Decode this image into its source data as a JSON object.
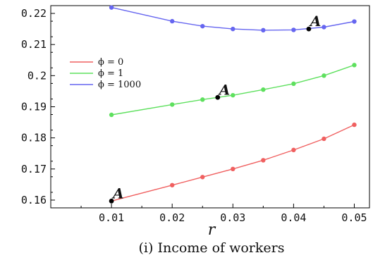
{
  "chart_data": {
    "type": "line",
    "xlabel": "r",
    "caption": "(i) Income of workers",
    "xlim": [
      0.0,
      0.0525
    ],
    "ylim": [
      0.1575,
      0.2225
    ],
    "xticks": [
      0.01,
      0.02,
      0.03,
      0.04,
      0.05
    ],
    "xtick_labels": [
      "0.01",
      "0.02",
      "0.03",
      "0.04",
      "0.05"
    ],
    "yticks": [
      0.16,
      0.17,
      0.18,
      0.19,
      0.2,
      0.21,
      0.22
    ],
    "ytick_labels": [
      "0.16",
      "0.17",
      "0.18",
      "0.19",
      "0.2",
      "0.21",
      "0.22"
    ],
    "grid": false,
    "legend": {
      "placement": "upper-left",
      "entries": [
        "ϕ = 0",
        "ϕ = 1",
        "ϕ = 1000"
      ]
    },
    "series": [
      {
        "name": "ϕ = 0",
        "color": "#f06060",
        "x": [
          0.01,
          0.02,
          0.025,
          0.03,
          0.035,
          0.04,
          0.045,
          0.05
        ],
        "y": [
          0.1597,
          0.1648,
          0.1674,
          0.17,
          0.1728,
          0.1761,
          0.1797,
          0.1842
        ]
      },
      {
        "name": "ϕ = 1",
        "color": "#5ee05e",
        "x": [
          0.01,
          0.02,
          0.025,
          0.03,
          0.035,
          0.04,
          0.045,
          0.05
        ],
        "y": [
          0.1874,
          0.1907,
          0.1923,
          0.1937,
          0.1955,
          0.1974,
          0.2,
          0.2034
        ]
      },
      {
        "name": "ϕ = 1000",
        "color": "#6666f0",
        "x": [
          0.01,
          0.02,
          0.025,
          0.03,
          0.035,
          0.04,
          0.045,
          0.05
        ],
        "y": [
          0.2219,
          0.2175,
          0.2159,
          0.215,
          0.2146,
          0.2147,
          0.2156,
          0.2174
        ]
      }
    ],
    "annotations": [
      {
        "label": "A",
        "x": 0.01,
        "y": 0.1597
      },
      {
        "label": "A",
        "x": 0.0275,
        "y": 0.193
      },
      {
        "label": "A",
        "x": 0.0425,
        "y": 0.215
      }
    ]
  }
}
